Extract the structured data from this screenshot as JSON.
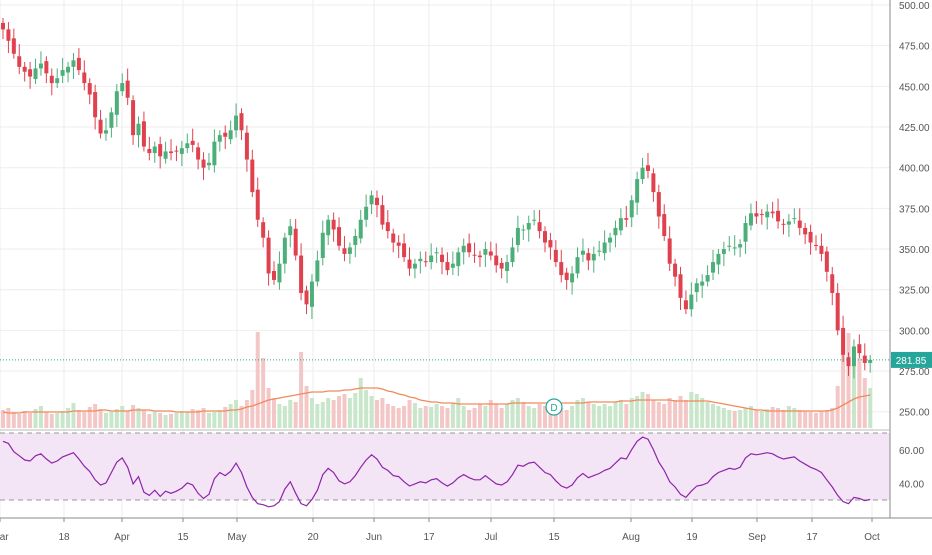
{
  "colors": {
    "up": "#26a69a",
    "up_body": "#4caf7a",
    "down": "#ef5350",
    "down_body": "#e0414f",
    "volume_up": "#c8e6c9",
    "volume_down": "#f4c7c7",
    "volume_ma": "#f08a5d",
    "rsi_line": "#8e24aa",
    "rsi_band": "#f3e5f5",
    "last_price": "#26a69a",
    "grid": "#eeeeee",
    "axis_text": "#555555"
  },
  "price_axis": {
    "labels": [
      "500.00",
      "475.00",
      "450.00",
      "425.00",
      "400.00",
      "375.00",
      "350.00",
      "325.00",
      "300.00",
      "275.00",
      "250.00"
    ]
  },
  "rsi_axis": {
    "labels": [
      "60.00",
      "40.00"
    ]
  },
  "last_price_label": "281.85",
  "dividend_marker": "D",
  "chart_data": [
    {
      "type": "candlestick",
      "title": "",
      "x_tick_labels": [
        "Mar",
        "18",
        "Apr",
        "15",
        "May",
        "20",
        "Jun",
        "17",
        "Jul",
        "15",
        "Aug",
        "19",
        "Sep",
        "17",
        "Oct"
      ],
      "ylim": [
        240,
        500
      ],
      "last_price": 281.85,
      "close": [
        485,
        478,
        470,
        462,
        459,
        456,
        461,
        464,
        458,
        452,
        455,
        460,
        462,
        466,
        460,
        452,
        445,
        431,
        421,
        423,
        434,
        447,
        452,
        443,
        420,
        427,
        413,
        409,
        413,
        407,
        410,
        409,
        410,
        412,
        415,
        414,
        405,
        400,
        403,
        416,
        420,
        419,
        423,
        432,
        423,
        405,
        385,
        368,
        357,
        335,
        331,
        341,
        357,
        364,
        346,
        323,
        316,
        330,
        343,
        360,
        368,
        362,
        352,
        347,
        351,
        358,
        368,
        376,
        383,
        377,
        365,
        361,
        354,
        352,
        345,
        338,
        341,
        344,
        342,
        346,
        348,
        342,
        337,
        341,
        348,
        352,
        348,
        346,
        345,
        350,
        346,
        340,
        338,
        342,
        351,
        363,
        362,
        366,
        368,
        361,
        354,
        351,
        342,
        334,
        331,
        335,
        345,
        349,
        343,
        347,
        349,
        354,
        357,
        363,
        369,
        368,
        380,
        393,
        400,
        398,
        385,
        370,
        358,
        341,
        333,
        320,
        313,
        322,
        329,
        330,
        334,
        342,
        347,
        350,
        352,
        351,
        353,
        366,
        372,
        370,
        371,
        373,
        372,
        367,
        365,
        367,
        369,
        363,
        359,
        354,
        352,
        347,
        336,
        323,
        300,
        285,
        278,
        290,
        286,
        280,
        281.85
      ],
      "rsi": [
        68,
        66,
        58,
        54,
        50,
        49,
        54,
        56,
        51,
        47,
        49,
        53,
        55,
        57,
        51,
        44,
        39,
        31,
        26,
        28,
        38,
        48,
        52,
        43,
        27,
        34,
        19,
        16,
        21,
        15,
        20,
        18,
        20,
        23,
        28,
        26,
        18,
        13,
        17,
        32,
        38,
        35,
        39,
        47,
        38,
        24,
        14,
        8,
        7,
        5,
        6,
        10,
        22,
        29,
        18,
        8,
        6,
        12,
        21,
        36,
        42,
        38,
        30,
        27,
        29,
        35,
        43,
        50,
        55,
        51,
        43,
        40,
        35,
        34,
        29,
        25,
        27,
        29,
        28,
        31,
        32,
        28,
        25,
        28,
        33,
        36,
        33,
        31,
        31,
        35,
        31,
        27,
        26,
        29,
        36,
        45,
        44,
        47,
        48,
        43,
        38,
        36,
        30,
        25,
        23,
        26,
        33,
        37,
        33,
        35,
        37,
        40,
        42,
        47,
        52,
        51,
        60,
        68,
        72,
        70,
        60,
        48,
        40,
        29,
        24,
        17,
        14,
        20,
        25,
        26,
        28,
        34,
        38,
        40,
        42,
        41,
        43,
        52,
        56,
        55,
        56,
        57,
        56,
        53,
        51,
        52,
        53,
        49,
        46,
        43,
        41,
        38,
        31,
        24,
        16,
        10,
        8,
        14,
        13,
        11,
        12
      ],
      "volume": [
        18,
        20,
        16,
        14,
        17,
        15,
        19,
        22,
        16,
        14,
        15,
        17,
        20,
        25,
        18,
        16,
        21,
        24,
        19,
        15,
        16,
        19,
        22,
        17,
        23,
        20,
        18,
        14,
        16,
        15,
        13,
        14,
        15,
        17,
        16,
        19,
        18,
        20,
        15,
        16,
        18,
        21,
        24,
        28,
        22,
        28,
        38,
        96,
        70,
        40,
        30,
        24,
        22,
        28,
        26,
        76,
        42,
        30,
        24,
        26,
        30,
        28,
        32,
        34,
        30,
        35,
        50,
        38,
        32,
        28,
        30,
        24,
        22,
        20,
        22,
        28,
        25,
        20,
        22,
        21,
        24,
        22,
        20,
        25,
        30,
        22,
        18,
        20,
        24,
        22,
        28,
        24,
        20,
        24,
        28,
        30,
        26,
        22,
        20,
        24,
        22,
        26,
        24,
        20,
        18,
        22,
        28,
        30,
        26,
        24,
        22,
        24,
        22,
        26,
        28,
        24,
        30,
        32,
        36,
        34,
        28,
        26,
        24,
        30,
        28,
        32,
        28,
        36,
        34,
        30,
        26,
        24,
        22,
        20,
        18,
        17,
        18,
        20,
        22,
        18,
        17,
        19,
        21,
        20,
        18,
        22,
        20,
        18,
        17,
        16,
        15,
        17,
        18,
        20,
        42,
        90,
        95,
        82,
        70,
        50,
        40
      ],
      "volume_ma": [
        16,
        15,
        15,
        15,
        16,
        16,
        16,
        16,
        16,
        16,
        16,
        16,
        16,
        17,
        17,
        17,
        17,
        17,
        18,
        18,
        17,
        17,
        17,
        17,
        18,
        18,
        18,
        18,
        17,
        17,
        17,
        17,
        16,
        16,
        16,
        16,
        16,
        17,
        17,
        17,
        17,
        17,
        18,
        18,
        19,
        21,
        22,
        24,
        26,
        28,
        29,
        30,
        31,
        32,
        33,
        34,
        35,
        36,
        36,
        36,
        37,
        37,
        37,
        38,
        38,
        39,
        40,
        40,
        40,
        40,
        39,
        37,
        36,
        34,
        33,
        31,
        30,
        28,
        27,
        26,
        26,
        25,
        25,
        25,
        24,
        24,
        24,
        24,
        24,
        24,
        24,
        24,
        24,
        24,
        25,
        25,
        25,
        25,
        25,
        25,
        25,
        25,
        25,
        25,
        25,
        25,
        25,
        25,
        26,
        26,
        26,
        26,
        26,
        26,
        27,
        27,
        27,
        28,
        28,
        28,
        28,
        28,
        28,
        28,
        27,
        27,
        27,
        27,
        27,
        27,
        27,
        26,
        25,
        24,
        23,
        22,
        21,
        20,
        19,
        18,
        18,
        17,
        17,
        17,
        17,
        17,
        17,
        17,
        17,
        17,
        17,
        17,
        17,
        18,
        20,
        23,
        26,
        29,
        31,
        32,
        33
      ]
    }
  ]
}
